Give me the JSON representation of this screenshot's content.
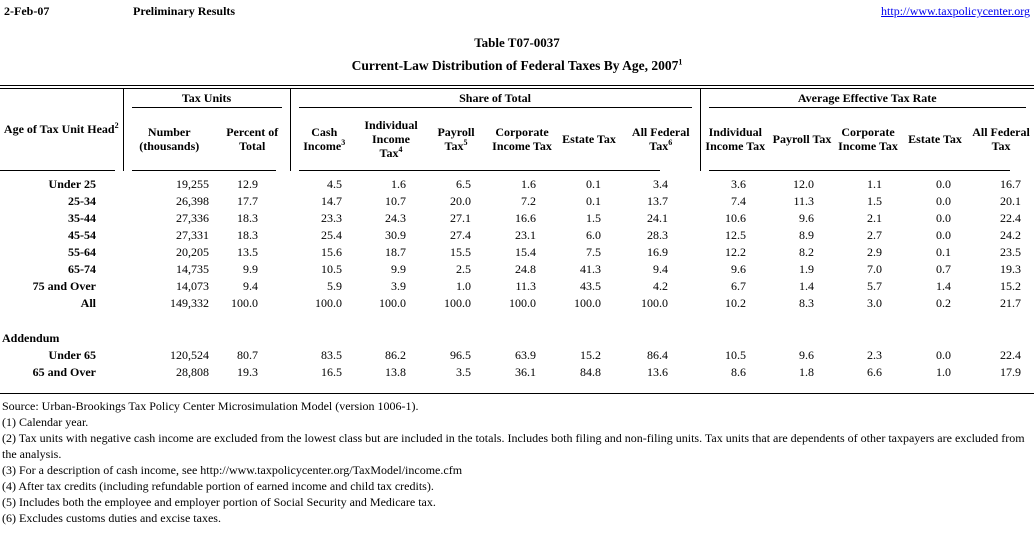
{
  "header": {
    "date": "2-Feb-07",
    "status": "Preliminary Results",
    "url": "http://www.taxpolicycenter.org"
  },
  "title": {
    "line1": "Table T07-0037",
    "line2": "Current-Law Distribution of Federal Taxes By Age, 2007",
    "line2_sup": "1"
  },
  "colors": {
    "link": "#0000EE",
    "text": "#000000",
    "background": "#FFFFFF"
  },
  "table": {
    "age_header": {
      "text": "Age of Tax Unit Head",
      "sup": "2"
    },
    "groups": [
      {
        "label": "Tax Units",
        "span": 2
      },
      {
        "label": "Share of Total",
        "span": 6
      },
      {
        "label": "Average Effective Tax Rate",
        "span": 5
      }
    ],
    "columns": [
      {
        "label": "Number (thousands)",
        "sup": ""
      },
      {
        "label": "Percent of Total",
        "sup": ""
      },
      {
        "label": "Cash Income",
        "sup": "3"
      },
      {
        "label": "Individual Income Tax",
        "sup": "4"
      },
      {
        "label": "Payroll Tax",
        "sup": "5"
      },
      {
        "label": "Corporate Income Tax",
        "sup": ""
      },
      {
        "label": "Estate Tax",
        "sup": ""
      },
      {
        "label": "All Federal Tax",
        "sup": "6"
      },
      {
        "label": "Individual Income Tax",
        "sup": ""
      },
      {
        "label": "Payroll Tax",
        "sup": ""
      },
      {
        "label": "Corporate Income Tax",
        "sup": ""
      },
      {
        "label": "Estate Tax",
        "sup": ""
      },
      {
        "label": "All Federal Tax",
        "sup": ""
      }
    ],
    "rows": [
      {
        "label": "Under 25",
        "values": [
          "19,255",
          "12.9",
          "4.5",
          "1.6",
          "6.5",
          "1.6",
          "0.1",
          "3.4",
          "3.6",
          "12.0",
          "1.1",
          "0.0",
          "16.7"
        ]
      },
      {
        "label": "25-34",
        "values": [
          "26,398",
          "17.7",
          "14.7",
          "10.7",
          "20.0",
          "7.2",
          "0.1",
          "13.7",
          "7.4",
          "11.3",
          "1.5",
          "0.0",
          "20.1"
        ]
      },
      {
        "label": "35-44",
        "values": [
          "27,336",
          "18.3",
          "23.3",
          "24.3",
          "27.1",
          "16.6",
          "1.5",
          "24.1",
          "10.6",
          "9.6",
          "2.1",
          "0.0",
          "22.4"
        ]
      },
      {
        "label": "45-54",
        "values": [
          "27,331",
          "18.3",
          "25.4",
          "30.9",
          "27.4",
          "23.1",
          "6.0",
          "28.3",
          "12.5",
          "8.9",
          "2.7",
          "0.0",
          "24.2"
        ]
      },
      {
        "label": "55-64",
        "values": [
          "20,205",
          "13.5",
          "15.6",
          "18.7",
          "15.5",
          "15.4",
          "7.5",
          "16.9",
          "12.2",
          "8.2",
          "2.9",
          "0.1",
          "23.5"
        ]
      },
      {
        "label": "65-74",
        "values": [
          "14,735",
          "9.9",
          "10.5",
          "9.9",
          "2.5",
          "24.8",
          "41.3",
          "9.4",
          "9.6",
          "1.9",
          "7.0",
          "0.7",
          "19.3"
        ]
      },
      {
        "label": "75 and Over",
        "values": [
          "14,073",
          "9.4",
          "5.9",
          "3.9",
          "1.0",
          "11.3",
          "43.5",
          "4.2",
          "6.7",
          "1.4",
          "5.7",
          "1.4",
          "15.2"
        ]
      },
      {
        "label": "All",
        "values": [
          "149,332",
          "100.0",
          "100.0",
          "100.0",
          "100.0",
          "100.0",
          "100.0",
          "100.0",
          "10.2",
          "8.3",
          "3.0",
          "0.2",
          "21.7"
        ]
      }
    ],
    "addendum_label": "Addendum",
    "addendum_rows": [
      {
        "label": "Under 65",
        "values": [
          "120,524",
          "80.7",
          "83.5",
          "86.2",
          "96.5",
          "63.9",
          "15.2",
          "86.4",
          "10.5",
          "9.6",
          "2.3",
          "0.0",
          "22.4"
        ]
      },
      {
        "label": "65 and Over",
        "values": [
          "28,808",
          "19.3",
          "16.5",
          "13.8",
          "3.5",
          "36.1",
          "84.8",
          "13.6",
          "8.6",
          "1.8",
          "6.6",
          "1.0",
          "17.9"
        ]
      }
    ]
  },
  "footnotes": [
    "Source: Urban-Brookings Tax Policy Center Microsimulation Model (version 1006-1).",
    "(1) Calendar year.",
    "(2) Tax units with negative cash income are excluded from the lowest class but are included in the totals. Includes both filing and non-filing units. Tax units that are dependents of other taxpayers are excluded from the analysis.",
    "(3) For a description of cash income, see http://www.taxpolicycenter.org/TaxModel/income.cfm",
    "(4) After tax credits (including refundable portion of earned income and child tax credits).",
    "(5) Includes both the employee and employer portion of Social Security and Medicare tax.",
    "(6) Excludes customs duties and excise taxes."
  ]
}
